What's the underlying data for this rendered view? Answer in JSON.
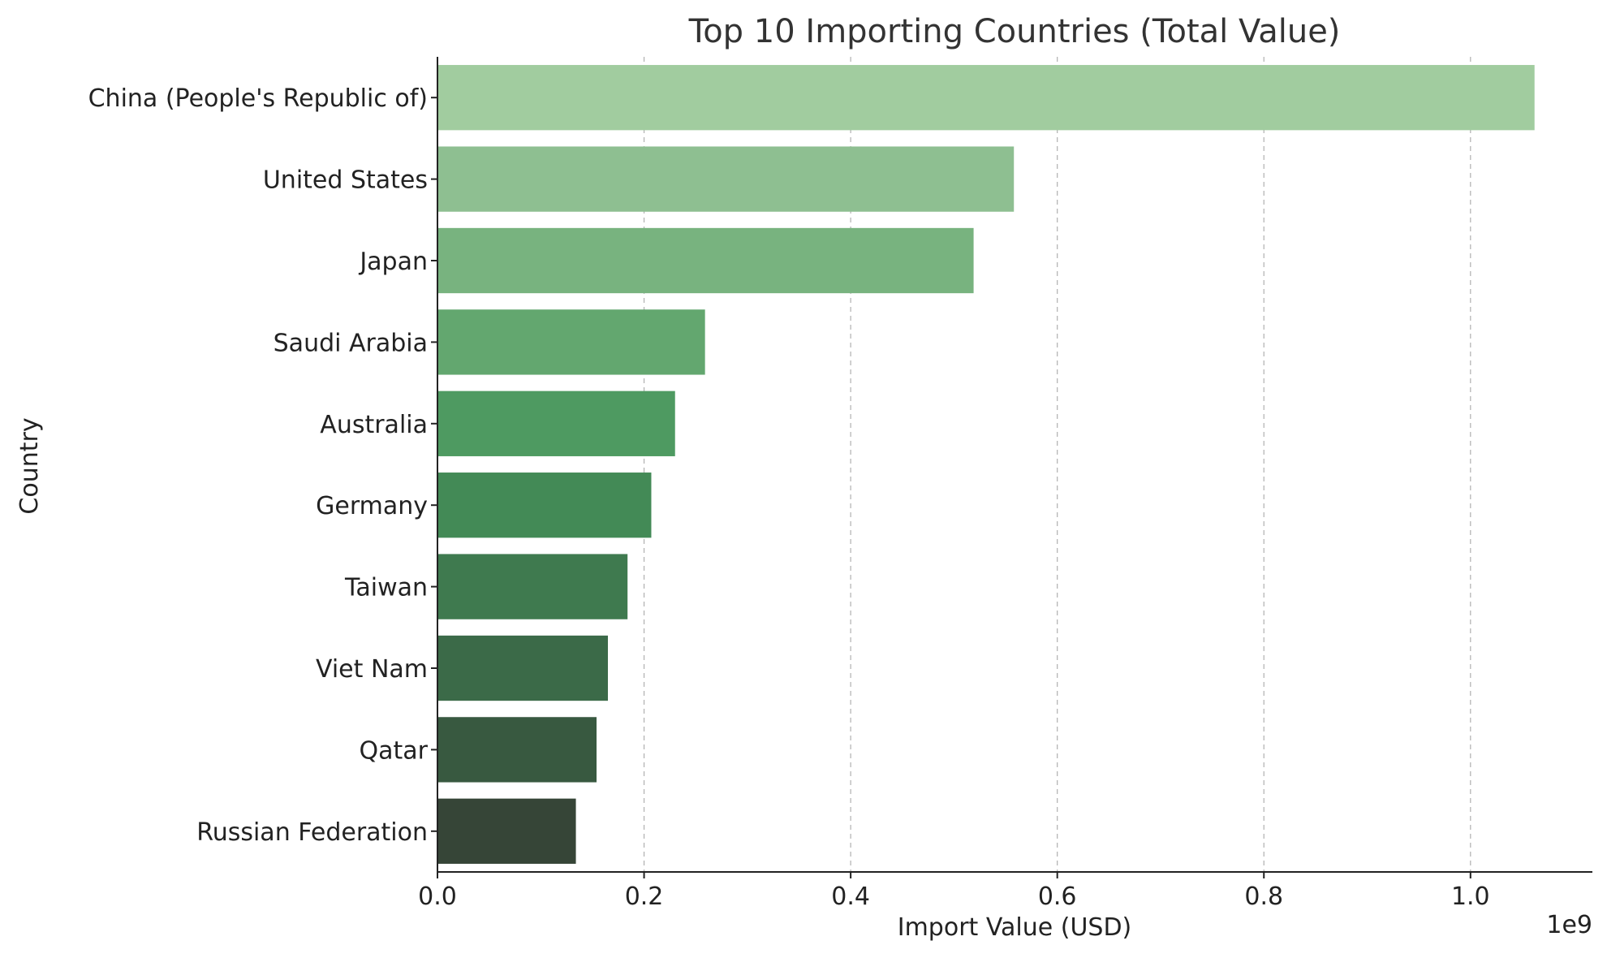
{
  "chart_data": {
    "type": "bar",
    "orientation": "horizontal",
    "title": "Top 10 Importing Countries (Total Value)",
    "xlabel": "Import Value (USD)",
    "ylabel": "Country",
    "x_offset_text": "1e9",
    "xlim": [
      0,
      1.118
    ],
    "xticks": [
      0.0,
      0.2,
      0.4,
      0.6,
      0.8,
      1.0
    ],
    "xtick_labels": [
      "0.0",
      "0.2",
      "0.4",
      "0.6",
      "0.8",
      "1.0"
    ],
    "grid": "x-axis dashed",
    "categories": [
      "China (People's Republic of)",
      "United States",
      "Japan",
      "Saudi Arabia",
      "Australia",
      "Germany",
      "Taiwan",
      "Viet Nam",
      "Qatar",
      "Russian Federation"
    ],
    "values": [
      1.062,
      0.558,
      0.519,
      0.259,
      0.23,
      0.207,
      0.184,
      0.165,
      0.154,
      0.134
    ],
    "colors": [
      "#a1cc9f",
      "#8ebf91",
      "#78b37f",
      "#63a76f",
      "#4e9a61",
      "#438a56",
      "#3f7a4f",
      "#3b6a48",
      "#385940",
      "#364537"
    ]
  }
}
